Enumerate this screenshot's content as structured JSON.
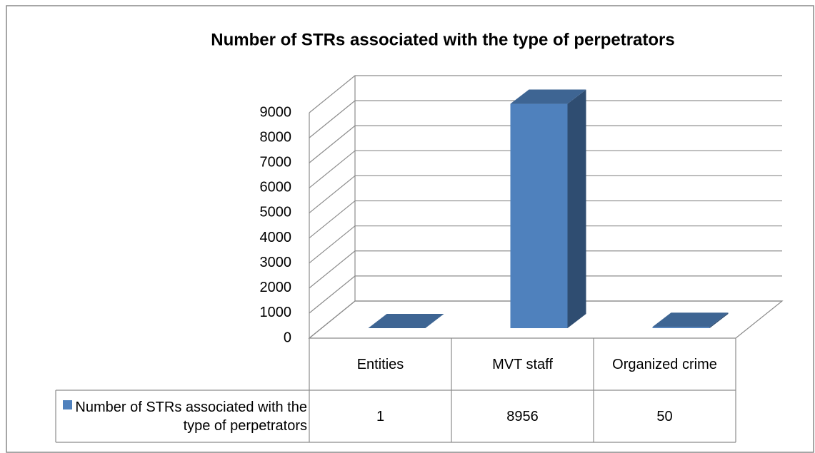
{
  "chart_data": {
    "type": "bar3d",
    "title": "Number of STRs associated with the type of perpetrators",
    "categories": [
      "Entities",
      "MVT staff",
      "Organized crime"
    ],
    "series": [
      {
        "name": "Number of STRs associated with the type of perpetrators",
        "color": "#4f81bd",
        "values": [
          1,
          8956,
          50
        ]
      }
    ],
    "ylim": [
      0,
      9000
    ],
    "yticks": [
      0,
      1000,
      2000,
      3000,
      4000,
      5000,
      6000,
      7000,
      8000,
      9000
    ],
    "grid": true,
    "data_table": true
  }
}
